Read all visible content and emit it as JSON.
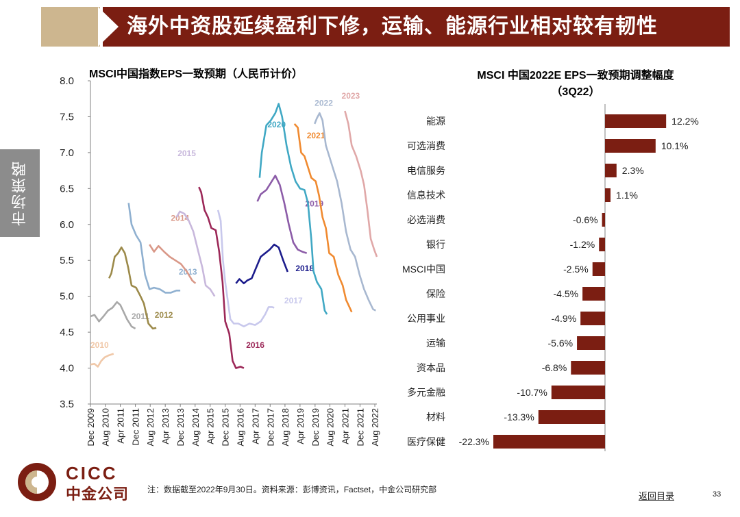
{
  "header": {
    "title": "海外中资股延续盈利下修，运输、能源行业相对较有韧性"
  },
  "side_tab": {
    "label": "市场策略"
  },
  "footer": {
    "note": "注：数据截至2022年9月30日。资料来源：彭博资讯，Factset，中金公司研究部",
    "back": "返回目录",
    "page": "33"
  },
  "logo": {
    "en": "CICC",
    "cn": "中金公司"
  },
  "colors": {
    "brand": "#7b1e12",
    "bar": "#7b1e12",
    "gold": "#cdb68f"
  },
  "chart_data": [
    {
      "type": "line",
      "title": "MSCI中国指数EPS一致预期（人民币计价）",
      "ylim": [
        3.5,
        8.0
      ],
      "yticks": [
        "3.5",
        "4.0",
        "4.5",
        "5.0",
        "5.5",
        "6.0",
        "6.5",
        "7.0",
        "7.5",
        "8.0"
      ],
      "x_range": [
        2009.92,
        2022.67
      ],
      "xticks": [
        {
          "label": "Dec 2009",
          "t": 2009.92
        },
        {
          "label": "Aug 2010",
          "t": 2010.58
        },
        {
          "label": "Apr 2011",
          "t": 2011.25
        },
        {
          "label": "Dec 2011",
          "t": 2011.92
        },
        {
          "label": "Aug 2012",
          "t": 2012.58
        },
        {
          "label": "Apr 2013",
          "t": 2013.25
        },
        {
          "label": "Dec 2013",
          "t": 2013.92
        },
        {
          "label": "Aug 2014",
          "t": 2014.58
        },
        {
          "label": "Apr 2015",
          "t": 2015.25
        },
        {
          "label": "Dec 2015",
          "t": 2015.92
        },
        {
          "label": "Aug 2016",
          "t": 2016.58
        },
        {
          "label": "Apr 2017",
          "t": 2017.25
        },
        {
          "label": "Dec 2017",
          "t": 2017.92
        },
        {
          "label": "Aug 2018",
          "t": 2018.58
        },
        {
          "label": "Apr 2019",
          "t": 2019.25
        },
        {
          "label": "Dec 2019",
          "t": 2019.92
        },
        {
          "label": "Aug 2020",
          "t": 2020.58
        },
        {
          "label": "Apr 2021",
          "t": 2021.25
        },
        {
          "label": "Dec 2021",
          "t": 2021.92
        },
        {
          "label": "Aug 2022",
          "t": 2022.58
        }
      ],
      "series": [
        {
          "name": "2010",
          "color": "#f0c8a8",
          "label_at": [
            2009.92,
            4.28
          ],
          "points": [
            [
              2009.92,
              4.05
            ],
            [
              2010.1,
              4.06
            ],
            [
              2010.25,
              4.02
            ],
            [
              2010.4,
              4.1
            ],
            [
              2010.55,
              4.15
            ],
            [
              2010.75,
              4.18
            ],
            [
              2010.95,
              4.2
            ]
          ]
        },
        {
          "name": "2011",
          "color": "#a8a8a8",
          "label_at": [
            2011.75,
            4.68
          ],
          "points": [
            [
              2009.92,
              4.72
            ],
            [
              2010.1,
              4.74
            ],
            [
              2010.3,
              4.65
            ],
            [
              2010.5,
              4.72
            ],
            [
              2010.7,
              4.8
            ],
            [
              2010.9,
              4.84
            ],
            [
              2011.1,
              4.92
            ],
            [
              2011.25,
              4.88
            ],
            [
              2011.4,
              4.78
            ],
            [
              2011.55,
              4.68
            ],
            [
              2011.75,
              4.58
            ],
            [
              2011.92,
              4.55
            ]
          ]
        },
        {
          "name": "2012",
          "color": "#9c8a4a",
          "label_at": [
            2012.78,
            4.7
          ],
          "points": [
            [
              2010.75,
              5.25
            ],
            [
              2010.85,
              5.32
            ],
            [
              2011.0,
              5.55
            ],
            [
              2011.15,
              5.6
            ],
            [
              2011.3,
              5.68
            ],
            [
              2011.45,
              5.6
            ],
            [
              2011.6,
              5.4
            ],
            [
              2011.75,
              5.15
            ],
            [
              2011.95,
              5.12
            ],
            [
              2012.15,
              5.0
            ],
            [
              2012.3,
              4.9
            ],
            [
              2012.5,
              4.62
            ],
            [
              2012.7,
              4.55
            ],
            [
              2012.85,
              4.56
            ]
          ]
        },
        {
          "name": "2013",
          "color": "#8fb0d0",
          "label_at": [
            2013.85,
            5.3
          ],
          "points": [
            [
              2011.62,
              6.3
            ],
            [
              2011.75,
              6.0
            ],
            [
              2011.95,
              5.85
            ],
            [
              2012.15,
              5.75
            ],
            [
              2012.35,
              5.3
            ],
            [
              2012.55,
              5.1
            ],
            [
              2012.75,
              5.12
            ],
            [
              2013.0,
              5.1
            ],
            [
              2013.25,
              5.05
            ],
            [
              2013.5,
              5.05
            ],
            [
              2013.75,
              5.08
            ],
            [
              2013.92,
              5.08
            ]
          ]
        },
        {
          "name": "2014",
          "color": "#d99888",
          "label_at": [
            2013.5,
            6.05
          ],
          "points": [
            [
              2012.55,
              5.72
            ],
            [
              2012.75,
              5.62
            ],
            [
              2012.95,
              5.7
            ],
            [
              2013.2,
              5.62
            ],
            [
              2013.45,
              5.55
            ],
            [
              2013.7,
              5.5
            ],
            [
              2013.95,
              5.45
            ],
            [
              2014.2,
              5.35
            ],
            [
              2014.45,
              5.22
            ],
            [
              2014.6,
              5.18
            ]
          ]
        },
        {
          "name": "2015",
          "color": "#c8b8dc",
          "label_at": [
            2013.8,
            6.95
          ],
          "points": [
            [
              2013.75,
              6.1
            ],
            [
              2013.9,
              6.18
            ],
            [
              2014.1,
              6.15
            ],
            [
              2014.3,
              6.05
            ],
            [
              2014.5,
              5.9
            ],
            [
              2014.7,
              5.65
            ],
            [
              2014.9,
              5.4
            ],
            [
              2015.05,
              5.15
            ],
            [
              2015.25,
              5.1
            ],
            [
              2015.45,
              5.0
            ]
          ]
        },
        {
          "name": "2016",
          "color": "#9c2858",
          "label_at": [
            2016.85,
            4.28
          ],
          "points": [
            [
              2014.75,
              6.52
            ],
            [
              2014.85,
              6.45
            ],
            [
              2015.0,
              6.2
            ],
            [
              2015.15,
              6.1
            ],
            [
              2015.3,
              5.95
            ],
            [
              2015.5,
              5.92
            ],
            [
              2015.65,
              5.62
            ],
            [
              2015.8,
              5.2
            ],
            [
              2015.92,
              4.65
            ],
            [
              2016.1,
              4.48
            ],
            [
              2016.25,
              4.1
            ],
            [
              2016.4,
              4.0
            ],
            [
              2016.6,
              4.02
            ],
            [
              2016.75,
              4.0
            ]
          ]
        },
        {
          "name": "2017",
          "color": "#c8c8ec",
          "label_at": [
            2018.55,
            4.9
          ],
          "points": [
            [
              2015.6,
              6.2
            ],
            [
              2015.72,
              6.05
            ],
            [
              2015.82,
              5.5
            ],
            [
              2015.92,
              5.2
            ],
            [
              2016.05,
              4.9
            ],
            [
              2016.15,
              4.68
            ],
            [
              2016.3,
              4.62
            ],
            [
              2016.5,
              4.62
            ],
            [
              2016.75,
              4.58
            ],
            [
              2017.0,
              4.62
            ],
            [
              2017.25,
              4.6
            ],
            [
              2017.5,
              4.65
            ],
            [
              2017.7,
              4.75
            ],
            [
              2017.85,
              4.85
            ],
            [
              2018.0,
              4.85
            ],
            [
              2018.1,
              4.84
            ]
          ]
        },
        {
          "name": "2018",
          "color": "#1c1c8c",
          "label_at": [
            2019.05,
            5.35
          ],
          "points": [
            [
              2016.4,
              5.18
            ],
            [
              2016.55,
              5.24
            ],
            [
              2016.75,
              5.18
            ],
            [
              2016.9,
              5.22
            ],
            [
              2017.1,
              5.25
            ],
            [
              2017.3,
              5.4
            ],
            [
              2017.5,
              5.55
            ],
            [
              2017.7,
              5.6
            ],
            [
              2017.9,
              5.65
            ],
            [
              2018.1,
              5.72
            ],
            [
              2018.3,
              5.68
            ],
            [
              2018.5,
              5.5
            ],
            [
              2018.7,
              5.34
            ]
          ]
        },
        {
          "name": "2019",
          "color": "#8c5ca8",
          "label_at": [
            2019.48,
            6.25
          ],
          "points": [
            [
              2017.35,
              6.32
            ],
            [
              2017.5,
              6.42
            ],
            [
              2017.75,
              6.48
            ],
            [
              2017.95,
              6.58
            ],
            [
              2018.15,
              6.68
            ],
            [
              2018.35,
              6.55
            ],
            [
              2018.55,
              6.3
            ],
            [
              2018.75,
              6.0
            ],
            [
              2018.95,
              5.75
            ],
            [
              2019.15,
              5.65
            ],
            [
              2019.35,
              5.62
            ],
            [
              2019.55,
              5.6
            ]
          ]
        },
        {
          "name": "2020",
          "color": "#40a8c4",
          "label_at": [
            2017.8,
            7.35
          ],
          "points": [
            [
              2017.45,
              6.65
            ],
            [
              2017.55,
              7.0
            ],
            [
              2017.75,
              7.38
            ],
            [
              2017.95,
              7.45
            ],
            [
              2018.15,
              7.55
            ],
            [
              2018.3,
              7.68
            ],
            [
              2018.45,
              7.5
            ],
            [
              2018.65,
              7.1
            ],
            [
              2018.85,
              6.8
            ],
            [
              2019.05,
              6.6
            ],
            [
              2019.25,
              6.5
            ],
            [
              2019.45,
              6.48
            ],
            [
              2019.6,
              6.3
            ],
            [
              2019.75,
              5.8
            ],
            [
              2019.85,
              5.35
            ],
            [
              2020.0,
              5.2
            ],
            [
              2020.2,
              5.1
            ],
            [
              2020.35,
              4.8
            ],
            [
              2020.45,
              4.75
            ]
          ]
        },
        {
          "name": "2021",
          "color": "#f08a30",
          "label_at": [
            2019.55,
            7.2
          ],
          "points": [
            [
              2019.0,
              7.4
            ],
            [
              2019.15,
              7.35
            ],
            [
              2019.3,
              7.0
            ],
            [
              2019.45,
              6.95
            ],
            [
              2019.6,
              6.8
            ],
            [
              2019.75,
              6.65
            ],
            [
              2019.95,
              6.6
            ],
            [
              2020.1,
              6.4
            ],
            [
              2020.25,
              6.1
            ],
            [
              2020.4,
              5.95
            ],
            [
              2020.55,
              5.6
            ],
            [
              2020.75,
              5.55
            ],
            [
              2020.95,
              5.3
            ],
            [
              2021.15,
              5.15
            ],
            [
              2021.3,
              4.95
            ],
            [
              2021.45,
              4.85
            ],
            [
              2021.55,
              4.78
            ]
          ]
        },
        {
          "name": "2022",
          "color": "#a8b8d0",
          "label_at": [
            2019.9,
            7.65
          ],
          "points": [
            [
              2019.9,
              7.4
            ],
            [
              2020.0,
              7.48
            ],
            [
              2020.12,
              7.55
            ],
            [
              2020.25,
              7.45
            ],
            [
              2020.4,
              7.1
            ],
            [
              2020.55,
              6.95
            ],
            [
              2020.7,
              6.8
            ],
            [
              2020.9,
              6.6
            ],
            [
              2021.1,
              6.3
            ],
            [
              2021.3,
              5.9
            ],
            [
              2021.5,
              5.65
            ],
            [
              2021.7,
              5.55
            ],
            [
              2021.9,
              5.3
            ],
            [
              2022.1,
              5.1
            ],
            [
              2022.3,
              4.95
            ],
            [
              2022.5,
              4.82
            ],
            [
              2022.62,
              4.8
            ]
          ]
        },
        {
          "name": "2023",
          "color": "#e0a8a8",
          "label_at": [
            2021.1,
            7.75
          ],
          "points": [
            [
              2021.25,
              7.58
            ],
            [
              2021.4,
              7.4
            ],
            [
              2021.55,
              7.1
            ],
            [
              2021.75,
              6.95
            ],
            [
              2021.95,
              6.75
            ],
            [
              2022.1,
              6.55
            ],
            [
              2022.25,
              6.2
            ],
            [
              2022.4,
              5.8
            ],
            [
              2022.55,
              5.65
            ],
            [
              2022.67,
              5.55
            ]
          ]
        }
      ]
    },
    {
      "type": "bar",
      "orientation": "horizontal",
      "title_line1": "MSCI 中国2022E EPS一致预期调整幅度",
      "title_line2": "（3Q22）",
      "xlim": [
        -22.3,
        12.2
      ],
      "categories": [
        "能源",
        "可选消费",
        "电信服务",
        "信息技术",
        "必选消费",
        "银行",
        "MSCI中国",
        "保险",
        "公用事业",
        "运输",
        "资本品",
        "多元金融",
        "材料",
        "医疗保健"
      ],
      "values": [
        12.2,
        10.1,
        2.3,
        1.1,
        -0.6,
        -1.2,
        -2.5,
        -4.5,
        -4.9,
        -5.6,
        -6.8,
        -10.7,
        -13.3,
        -22.3
      ],
      "labels": [
        "12.2%",
        "10.1%",
        "2.3%",
        "1.1%",
        "-0.6%",
        "-1.2%",
        "-2.5%",
        "-4.5%",
        "-4.9%",
        "-5.6%",
        "-6.8%",
        "-10.7%",
        "-13.3%",
        "-22.3%"
      ]
    }
  ]
}
